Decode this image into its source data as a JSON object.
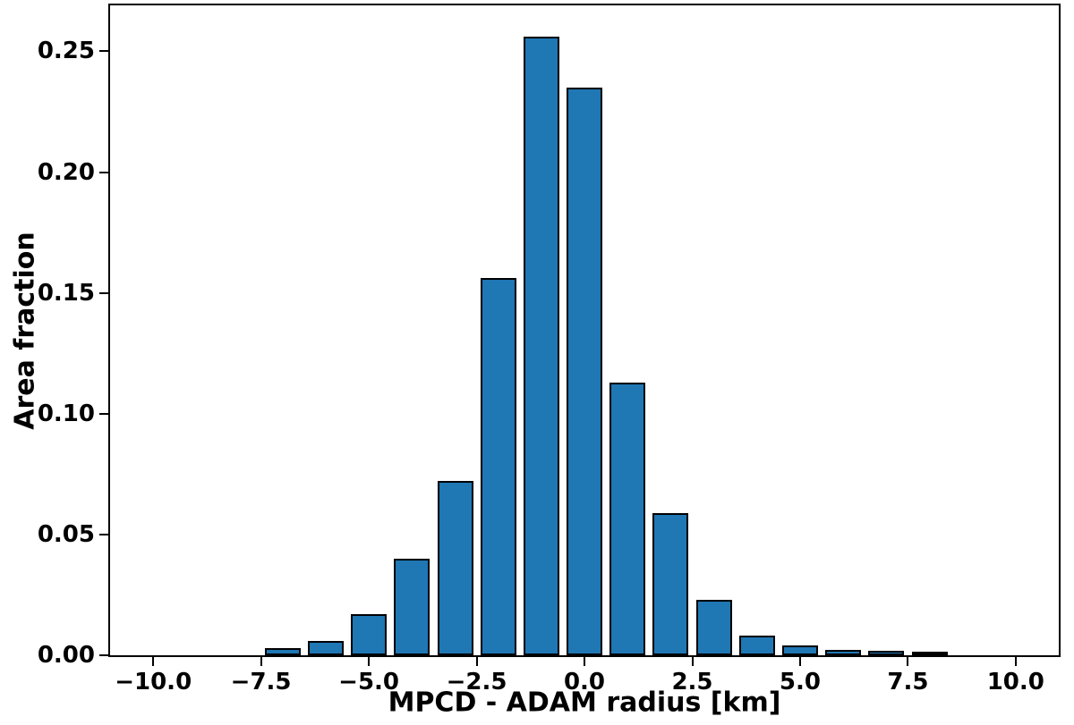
{
  "chart_data": {
    "type": "bar",
    "title": "",
    "xlabel": "MPCD - ADAM radius [km]",
    "ylabel": "Area fraction",
    "x": [
      -7,
      -6,
      -5,
      -4,
      -3,
      -2,
      -1,
      0,
      1,
      2,
      3,
      4,
      5,
      6,
      7,
      8
    ],
    "values": [
      0.003,
      0.006,
      0.017,
      0.04,
      0.072,
      0.156,
      0.256,
      0.235,
      0.113,
      0.059,
      0.023,
      0.008,
      0.004,
      0.0022,
      0.0019,
      0.0007
    ],
    "bar_width": 0.83,
    "bar_color": "#1f77b4",
    "bar_edge_color": "#000000",
    "xlim": [
      -11,
      11
    ],
    "ylim": [
      0,
      0.269
    ],
    "xticks": [
      {
        "v": -10,
        "label": "−10.0"
      },
      {
        "v": -7.5,
        "label": "−7.5"
      },
      {
        "v": -5,
        "label": "−5.0"
      },
      {
        "v": -2.5,
        "label": "−2.5"
      },
      {
        "v": 0,
        "label": "0.0"
      },
      {
        "v": 2.5,
        "label": "2.5"
      },
      {
        "v": 5,
        "label": "5.0"
      },
      {
        "v": 7.5,
        "label": "7.5"
      },
      {
        "v": 10,
        "label": "10.0"
      }
    ],
    "yticks": [
      {
        "v": 0.0,
        "label": "0.00"
      },
      {
        "v": 0.05,
        "label": "0.05"
      },
      {
        "v": 0.1,
        "label": "0.10"
      },
      {
        "v": 0.15,
        "label": "0.15"
      },
      {
        "v": 0.2,
        "label": "0.20"
      },
      {
        "v": 0.25,
        "label": "0.25"
      }
    ],
    "grid": false,
    "legend": null
  }
}
